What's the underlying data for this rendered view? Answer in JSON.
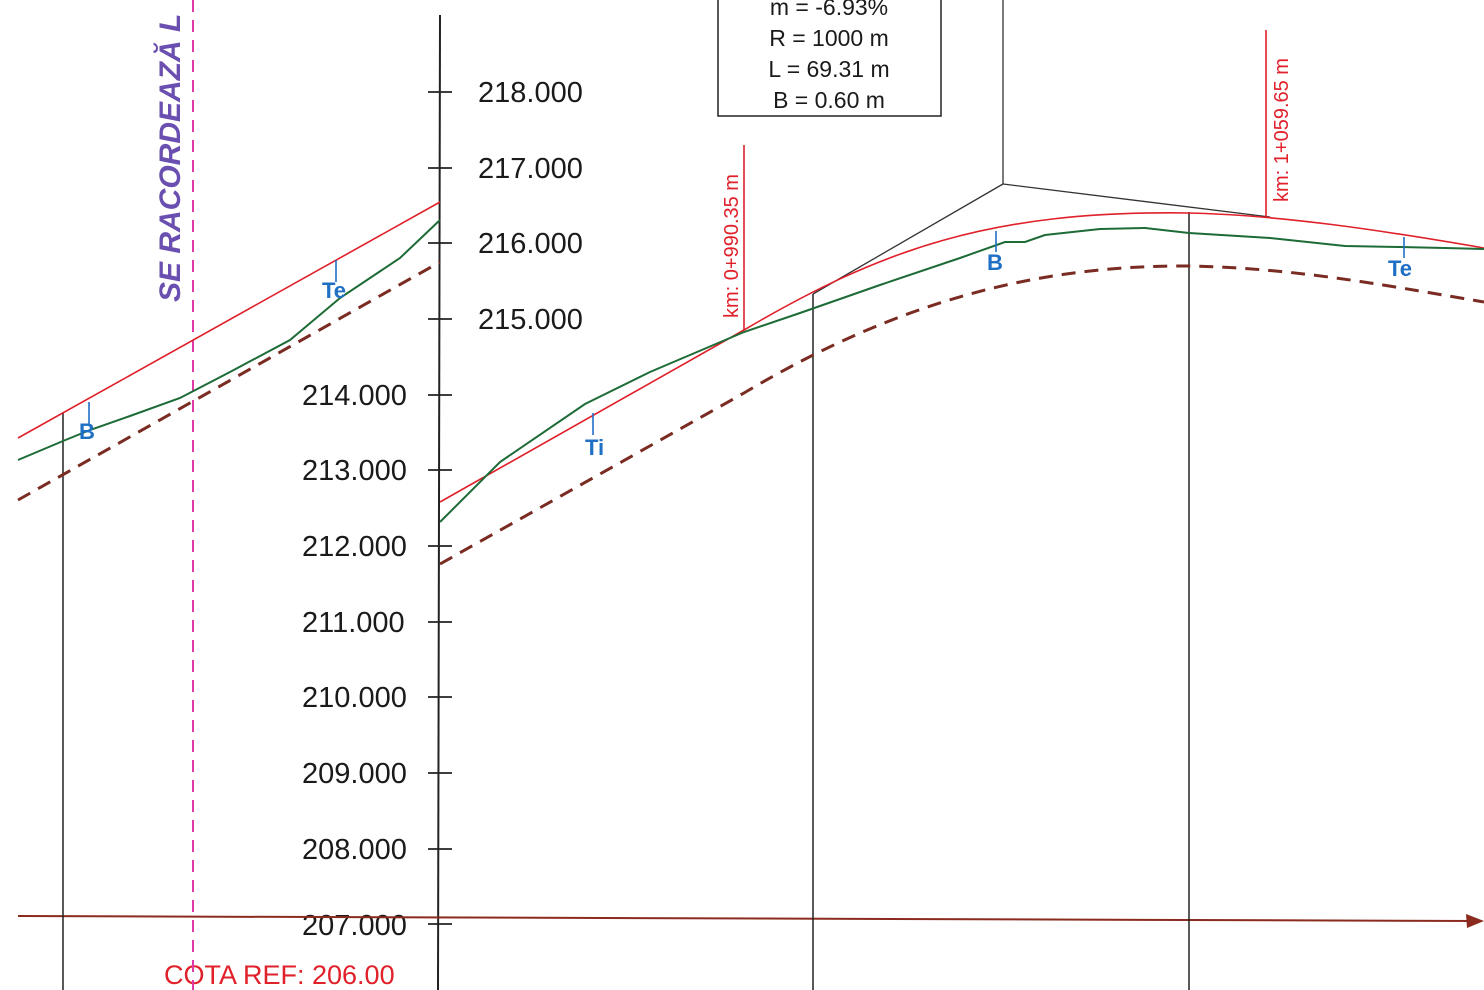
{
  "elevation_labels": [
    "218.000",
    "217.000",
    "216.000",
    "215.000",
    "214.000",
    "213.000",
    "212.000",
    "211.000",
    "210.000",
    "209.000",
    "208.000",
    "207.000"
  ],
  "reference_level": "COTA REF: 206.00",
  "side_note": "SE RACORDEAZĂ L",
  "curve_box": {
    "line1": "m = -6.93%",
    "line2": "R = 1000 m",
    "line3": "L = 69.31 m",
    "line4": "B = 0.60 m"
  },
  "km_marks": {
    "first": "km: 0+990.35 m",
    "second": "km: 1+059.65 m"
  },
  "points": {
    "b_left": "B",
    "te_left": "Te",
    "ti": "Ti",
    "b_mid": "B",
    "te_right": "Te"
  },
  "colors": {
    "design_line": "#e0202a",
    "terrain_line": "#1d6b36",
    "bottom_line": "#7a2b22",
    "axis_ref": "#8b2a1e",
    "side_line": "#e03aa8",
    "point_marker": "#1f6fc4",
    "side_note": "#6a4fb0"
  }
}
